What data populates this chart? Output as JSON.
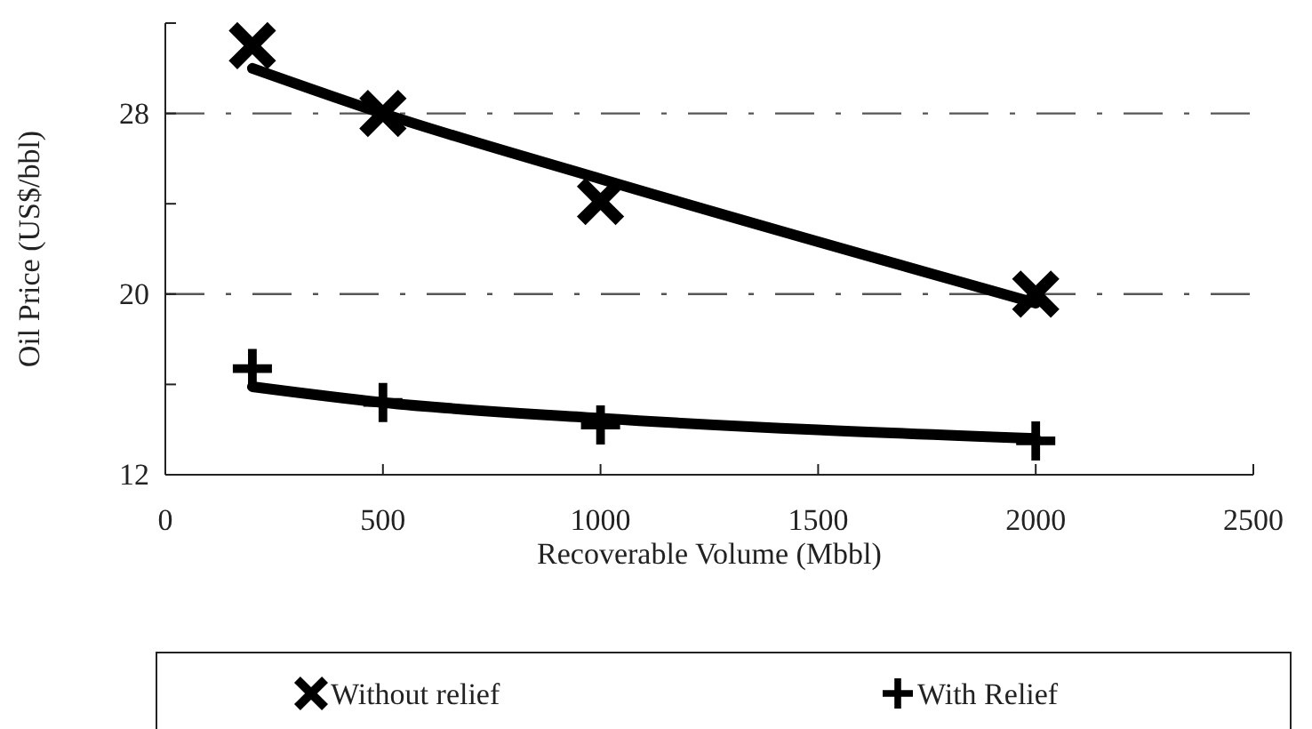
{
  "chart_data": {
    "type": "scatter",
    "xlabel": "Recoverable Volume (Mbbl)",
    "ylabel": "Oil Price (US$/bbl)",
    "xlim": [
      0,
      2500
    ],
    "xticks": [
      0,
      500,
      1000,
      1500,
      2000,
      2500
    ],
    "ylim": [
      12,
      32
    ],
    "yticks": [
      12,
      {
        "value": 16,
        "label": null
      },
      20,
      {
        "value": 24,
        "label": null
      },
      28,
      {
        "value": 32,
        "label": null
      }
    ],
    "ref_lines": [
      {
        "axis": "y",
        "value": 20,
        "color": "#555555",
        "line_style": "dashed"
      },
      {
        "axis": "y",
        "value": 28,
        "color": "#555555",
        "line_style": "dashed"
      }
    ],
    "legend": "bottom",
    "grid": false,
    "series": [
      {
        "name": "Without relief",
        "marker": "x",
        "color": "#000000",
        "x": [
          200,
          500,
          1000,
          2000
        ],
        "values": [
          31.0,
          28.0,
          24.1,
          20.0
        ]
      },
      {
        "name": "With Relief",
        "marker": "cross",
        "color": "#000000",
        "x": [
          200,
          500,
          1000,
          2000
        ],
        "values": [
          16.7,
          15.2,
          14.2,
          13.5
        ]
      },
      {
        "type": "line",
        "marker": "none",
        "color": "#000000",
        "x": [
          200,
          500,
          1000,
          2000
        ],
        "values": [
          30.0,
          28.0,
          25.1,
          19.6
        ]
      },
      {
        "type": "line",
        "marker": "none",
        "color": "#000000",
        "x": [
          200,
          500,
          1000,
          2000
        ],
        "values": [
          15.9,
          15.2,
          14.5,
          13.6
        ]
      }
    ]
  }
}
